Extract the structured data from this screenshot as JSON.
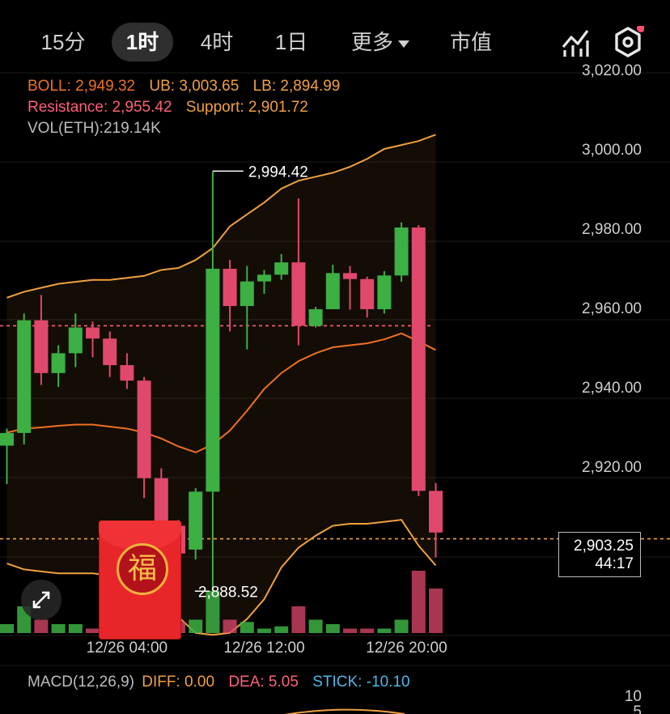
{
  "tabs": [
    {
      "label": "15分",
      "active": false
    },
    {
      "label": "1时",
      "active": true
    },
    {
      "label": "4时",
      "active": false
    },
    {
      "label": "1日",
      "active": false
    },
    {
      "label": "更多",
      "active": false
    },
    {
      "label": "市值",
      "active": false
    }
  ],
  "legend": {
    "boll": "BOLL: 2,949.32",
    "ub": "UB: 3,003.65",
    "lb": "LB: 2,894.99",
    "resistance": "Resistance: 2,955.42",
    "support": "Support: 2,901.72",
    "vol": "VOL(ETH):219.14K"
  },
  "macd": {
    "name": "MACD(12,26,9)",
    "diff": "DIFF: 0.00",
    "dea": "DEA: 5.05",
    "stick": "STICK: -10.10"
  },
  "macd_axis": [
    "10",
    "5"
  ],
  "price_tag": {
    "price": "2,903.25",
    "countdown": "44:17"
  },
  "red_packet_char": "福",
  "colors": {
    "up": "#3cb043",
    "down": "#e0486c",
    "boll_mid": "#f07020",
    "boll_band": "#f0a040",
    "resistance": "#ff6070",
    "support": "#f0a040"
  },
  "chart_data": {
    "type": "candlestick",
    "y_ticks": [
      "3,020.00",
      "3,000.00",
      "2,980.00",
      "2,960.00",
      "2,940.00",
      "2,920.00",
      "2,900.00"
    ],
    "y_tick_values": [
      3020,
      3000,
      2980,
      2960,
      2940,
      2920,
      2900
    ],
    "x_ticks": [
      "12/26 04:00",
      "12/26 12:00",
      "12/26 20:00"
    ],
    "x_tick_index": [
      7,
      15,
      23.3
    ],
    "high_label": "2,994.42",
    "low_label": "2,888.52",
    "resistance": 2955.42,
    "support": 2901.72,
    "candles": [
      [
        2925.2,
        2928.4,
        2915.5,
        2929.5
      ],
      [
        2928.4,
        2956.8,
        2925.5,
        2958.5
      ],
      [
        2956.8,
        2943.5,
        2940.5,
        2963.2
      ],
      [
        2943.5,
        2948.5,
        2940.0,
        2950.5
      ],
      [
        2948.5,
        2955.0,
        2945.0,
        2958.5
      ],
      [
        2955.0,
        2952.2,
        2947.5,
        2956.5
      ],
      [
        2952.2,
        2945.5,
        2942.5,
        2954.0
      ],
      [
        2945.5,
        2941.6,
        2939.5,
        2948.5
      ],
      [
        2941.6,
        2917.0,
        2912.0,
        2942.5
      ],
      [
        2917.0,
        2905.0,
        2902.5,
        2919.5
      ],
      [
        2905.0,
        2898.0,
        2894.0,
        2906.5
      ],
      [
        2899.0,
        2913.6,
        2896.5,
        2914.5
      ],
      [
        2913.6,
        2969.8,
        2888.5,
        2994.4
      ],
      [
        2969.8,
        2960.4,
        2954.0,
        2972.0
      ],
      [
        2960.4,
        2966.6,
        2949.5,
        2970.5
      ],
      [
        2966.6,
        2968.3,
        2963.5,
        2969.5
      ],
      [
        2968.3,
        2971.4,
        2967.0,
        2973.5
      ],
      [
        2971.4,
        2955.4,
        2950.5,
        2987.5
      ],
      [
        2955.4,
        2959.6,
        2955.0,
        2960.2
      ],
      [
        2959.6,
        2968.7,
        2960.5,
        2970.8
      ],
      [
        2968.7,
        2967.2,
        2959.5,
        2970.5
      ],
      [
        2967.2,
        2959.6,
        2957.5,
        2967.8
      ],
      [
        2959.6,
        2968.1,
        2958.5,
        2969.2
      ],
      [
        2968.1,
        2980.2,
        2966.5,
        2981.5
      ],
      [
        2980.2,
        2913.8,
        2912.5,
        2980.8
      ],
      [
        2913.8,
        2903.3,
        2897.0,
        2915.8
      ]
    ],
    "volume": [
      0.2,
      0.6,
      0.3,
      0.2,
      0.2,
      0.1,
      0.15,
      0.15,
      0.3,
      0.4,
      0.25,
      0.3,
      0.95,
      0.3,
      0.25,
      0.1,
      0.15,
      0.6,
      0.3,
      0.2,
      0.1,
      0.1,
      0.1,
      0.3,
      1.4,
      1.0
    ],
    "boll_upper": [
      2962.5,
      2964.0,
      2965.0,
      2966.0,
      2966.5,
      2967.0,
      2967.0,
      2967.5,
      2968.0,
      2969.5,
      2970.0,
      2972.0,
      2975.0,
      2980.5,
      2983.5,
      2986.5,
      2990.0,
      2992.0,
      2993.0,
      2994.0,
      2995.5,
      2997.5,
      3000.0,
      3001.0,
      3002.0,
      3003.6
    ],
    "boll_mid": [
      2928.5,
      2929.5,
      2929.8,
      2930.2,
      2930.5,
      2930.5,
      2930.0,
      2929.5,
      2928.5,
      2927.0,
      2925.0,
      2923.5,
      2925.5,
      2929.0,
      2934.0,
      2939.5,
      2943.5,
      2946.5,
      2948.5,
      2950.0,
      2950.5,
      2951.0,
      2952.0,
      2953.5,
      2951.5,
      2949.3
    ],
    "boll_lower": [
      2895.5,
      2894.0,
      2893.5,
      2893.0,
      2893.0,
      2893.0,
      2892.5,
      2891.5,
      2890.0,
      2887.0,
      2882.0,
      2878.0,
      2877.5,
      2878.0,
      2881.5,
      2886.5,
      2894.5,
      2899.5,
      2902.5,
      2905.0,
      2905.5,
      2905.5,
      2906.0,
      2906.5,
      2900.0,
      2895.0
    ]
  }
}
